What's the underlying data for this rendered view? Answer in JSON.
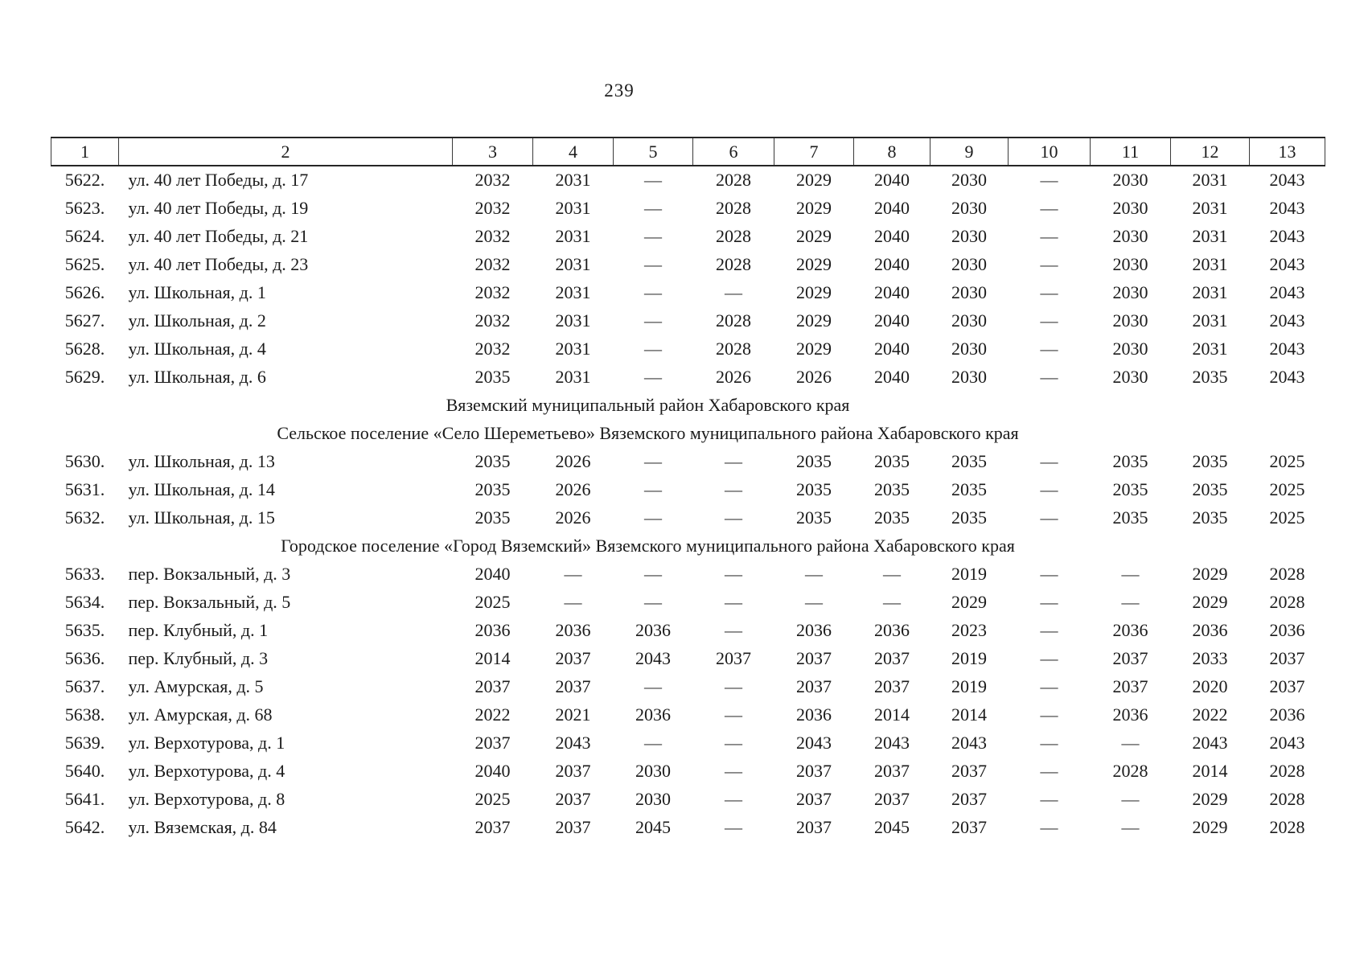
{
  "page": {
    "number": "239"
  },
  "table": {
    "columns": [
      "1",
      "2",
      "3",
      "4",
      "5",
      "6",
      "7",
      "8",
      "9",
      "10",
      "11",
      "12",
      "13"
    ],
    "rows": [
      {
        "type": "data",
        "num": "5622.",
        "address": "ул. 40 лет Победы, д. 17",
        "values": [
          "2032",
          "2031",
          "—",
          "2028",
          "2029",
          "2040",
          "2030",
          "—",
          "2030",
          "2031",
          "2043"
        ]
      },
      {
        "type": "data",
        "num": "5623.",
        "address": "ул. 40 лет Победы, д. 19",
        "values": [
          "2032",
          "2031",
          "—",
          "2028",
          "2029",
          "2040",
          "2030",
          "—",
          "2030",
          "2031",
          "2043"
        ]
      },
      {
        "type": "data",
        "num": "5624.",
        "address": "ул. 40 лет Победы, д. 21",
        "values": [
          "2032",
          "2031",
          "—",
          "2028",
          "2029",
          "2040",
          "2030",
          "—",
          "2030",
          "2031",
          "2043"
        ]
      },
      {
        "type": "data",
        "num": "5625.",
        "address": "ул. 40 лет Победы, д. 23",
        "values": [
          "2032",
          "2031",
          "—",
          "2028",
          "2029",
          "2040",
          "2030",
          "—",
          "2030",
          "2031",
          "2043"
        ]
      },
      {
        "type": "data",
        "num": "5626.",
        "address": "ул. Школьная, д. 1",
        "values": [
          "2032",
          "2031",
          "—",
          "—",
          "2029",
          "2040",
          "2030",
          "—",
          "2030",
          "2031",
          "2043"
        ]
      },
      {
        "type": "data",
        "num": "5627.",
        "address": "ул. Школьная, д. 2",
        "values": [
          "2032",
          "2031",
          "—",
          "2028",
          "2029",
          "2040",
          "2030",
          "—",
          "2030",
          "2031",
          "2043"
        ]
      },
      {
        "type": "data",
        "num": "5628.",
        "address": "ул. Школьная, д. 4",
        "values": [
          "2032",
          "2031",
          "—",
          "2028",
          "2029",
          "2040",
          "2030",
          "—",
          "2030",
          "2031",
          "2043"
        ]
      },
      {
        "type": "data",
        "num": "5629.",
        "address": "ул. Школьная, д. 6",
        "values": [
          "2035",
          "2031",
          "—",
          "2026",
          "2026",
          "2040",
          "2030",
          "—",
          "2030",
          "2035",
          "2043"
        ]
      },
      {
        "type": "section",
        "label": "Вяземский муниципальный район Хабаровского края"
      },
      {
        "type": "section",
        "label": "Сельское поселение «Село Шереметьево» Вяземского муниципального района Хабаровского края"
      },
      {
        "type": "data",
        "num": "5630.",
        "address": "ул. Школьная, д. 13",
        "values": [
          "2035",
          "2026",
          "—",
          "—",
          "2035",
          "2035",
          "2035",
          "—",
          "2035",
          "2035",
          "2025"
        ]
      },
      {
        "type": "data",
        "num": "5631.",
        "address": "ул. Школьная, д. 14",
        "values": [
          "2035",
          "2026",
          "—",
          "—",
          "2035",
          "2035",
          "2035",
          "—",
          "2035",
          "2035",
          "2025"
        ]
      },
      {
        "type": "data",
        "num": "5632.",
        "address": "ул. Школьная, д. 15",
        "values": [
          "2035",
          "2026",
          "—",
          "—",
          "2035",
          "2035",
          "2035",
          "—",
          "2035",
          "2035",
          "2025"
        ]
      },
      {
        "type": "section",
        "label": "Городское поселение «Город Вяземский» Вяземского муниципального района Хабаровского края"
      },
      {
        "type": "data",
        "num": "5633.",
        "address": "пер. Вокзальный, д. 3",
        "values": [
          "2040",
          "—",
          "—",
          "—",
          "—",
          "—",
          "2019",
          "—",
          "—",
          "2029",
          "2028"
        ]
      },
      {
        "type": "data",
        "num": "5634.",
        "address": "пер. Вокзальный, д. 5",
        "values": [
          "2025",
          "—",
          "—",
          "—",
          "—",
          "—",
          "2029",
          "—",
          "—",
          "2029",
          "2028"
        ]
      },
      {
        "type": "data",
        "num": "5635.",
        "address": "пер. Клубный, д. 1",
        "values": [
          "2036",
          "2036",
          "2036",
          "—",
          "2036",
          "2036",
          "2023",
          "—",
          "2036",
          "2036",
          "2036"
        ]
      },
      {
        "type": "data",
        "num": "5636.",
        "address": "пер. Клубный, д. 3",
        "values": [
          "2014",
          "2037",
          "2043",
          "2037",
          "2037",
          "2037",
          "2019",
          "—",
          "2037",
          "2033",
          "2037"
        ]
      },
      {
        "type": "data",
        "num": "5637.",
        "address": "ул. Амурская, д. 5",
        "values": [
          "2037",
          "2037",
          "—",
          "—",
          "2037",
          "2037",
          "2019",
          "—",
          "2037",
          "2020",
          "2037"
        ]
      },
      {
        "type": "data",
        "num": "5638.",
        "address": "ул. Амурская, д. 68",
        "values": [
          "2022",
          "2021",
          "2036",
          "—",
          "2036",
          "2014",
          "2014",
          "—",
          "2036",
          "2022",
          "2036"
        ]
      },
      {
        "type": "data",
        "num": "5639.",
        "address": "ул. Верхотурова, д. 1",
        "values": [
          "2037",
          "2043",
          "—",
          "—",
          "2043",
          "2043",
          "2043",
          "—",
          "—",
          "2043",
          "2043"
        ]
      },
      {
        "type": "data",
        "num": "5640.",
        "address": "ул. Верхотурова, д. 4",
        "values": [
          "2040",
          "2037",
          "2030",
          "—",
          "2037",
          "2037",
          "2037",
          "—",
          "2028",
          "2014",
          "2028"
        ]
      },
      {
        "type": "data",
        "num": "5641.",
        "address": "ул. Верхотурова, д. 8",
        "values": [
          "2025",
          "2037",
          "2030",
          "—",
          "2037",
          "2037",
          "2037",
          "—",
          "—",
          "2029",
          "2028"
        ]
      },
      {
        "type": "data",
        "num": "5642.",
        "address": "ул. Вяземская, д. 84",
        "values": [
          "2037",
          "2037",
          "2045",
          "—",
          "2037",
          "2045",
          "2037",
          "—",
          "—",
          "2029",
          "2028"
        ]
      }
    ]
  }
}
